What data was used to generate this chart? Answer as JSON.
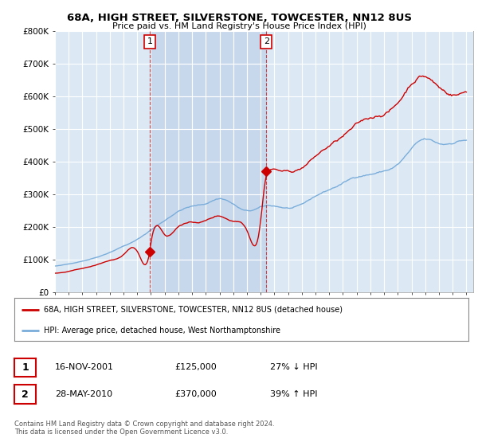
{
  "title": "68A, HIGH STREET, SILVERSTONE, TOWCESTER, NN12 8US",
  "subtitle": "Price paid vs. HM Land Registry's House Price Index (HPI)",
  "ylim": [
    0,
    800000
  ],
  "xlim_start": 1995.0,
  "xlim_end": 2025.5,
  "background_color": "#dce9f5",
  "shade_color": "#c5d9ee",
  "grid_color": "#ffffff",
  "red_line_color": "#cc0000",
  "blue_line_color": "#7aadda",
  "vline_color": "#cc0000",
  "sale1_x": 2001.92,
  "sale1_y": 125000,
  "sale2_x": 2010.41,
  "sale2_y": 370000,
  "legend_entry1": "68A, HIGH STREET, SILVERSTONE, TOWCESTER, NN12 8US (detached house)",
  "legend_entry2": "HPI: Average price, detached house, West Northamptonshire",
  "footnote": "Contains HM Land Registry data © Crown copyright and database right 2024.\nThis data is licensed under the Open Government Licence v3.0."
}
